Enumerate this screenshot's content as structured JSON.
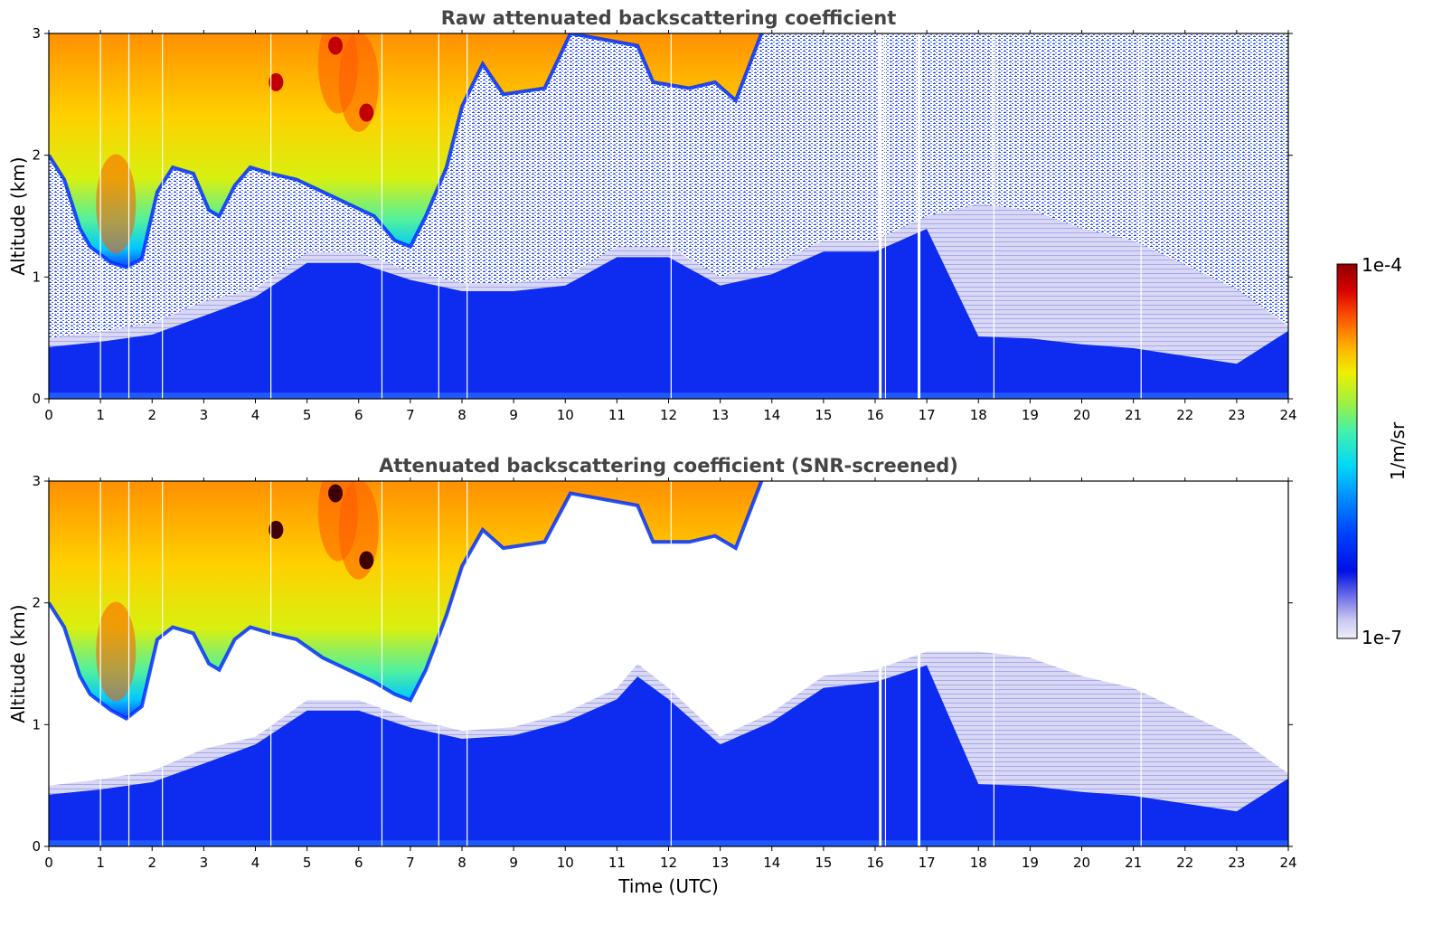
{
  "chart_data": [
    {
      "type": "heatmap",
      "title": "Raw attenuated backscattering coefficient",
      "xlabel": "",
      "ylabel": "Altitude (km)",
      "xlim": [
        0,
        24
      ],
      "ylim": [
        0,
        3
      ],
      "x_ticks": [
        "0",
        "1",
        "2",
        "3",
        "4",
        "5",
        "6",
        "7",
        "8",
        "9",
        "10",
        "11",
        "12",
        "13",
        "14",
        "15",
        "16",
        "17",
        "18",
        "19",
        "20",
        "21",
        "22",
        "23",
        "24"
      ],
      "y_ticks": [
        "0",
        "1",
        "2",
        "3"
      ],
      "screened": false,
      "cloud_top_km": 3,
      "cloud_base_km": [
        [
          0.0,
          2.0
        ],
        [
          0.3,
          1.8
        ],
        [
          0.6,
          1.4
        ],
        [
          0.8,
          1.25
        ],
        [
          1.2,
          1.12
        ],
        [
          1.5,
          1.08
        ],
        [
          1.8,
          1.15
        ],
        [
          2.1,
          1.7
        ],
        [
          2.4,
          1.9
        ],
        [
          2.8,
          1.85
        ],
        [
          3.1,
          1.55
        ],
        [
          3.3,
          1.5
        ],
        [
          3.6,
          1.75
        ],
        [
          3.9,
          1.9
        ],
        [
          4.3,
          1.85
        ],
        [
          4.8,
          1.8
        ],
        [
          5.3,
          1.7
        ],
        [
          5.8,
          1.6
        ],
        [
          6.3,
          1.5
        ],
        [
          6.7,
          1.3
        ],
        [
          7.0,
          1.25
        ],
        [
          7.3,
          1.5
        ],
        [
          7.7,
          1.9
        ],
        [
          8.0,
          2.4
        ],
        [
          8.4,
          2.75
        ],
        [
          8.8,
          2.5
        ],
        [
          9.6,
          2.55
        ],
        [
          10.1,
          3.0
        ],
        [
          11.4,
          2.9
        ],
        [
          11.7,
          2.6
        ],
        [
          12.4,
          2.55
        ],
        [
          12.9,
          2.6
        ],
        [
          13.3,
          2.45
        ],
        [
          13.8,
          3.0
        ]
      ],
      "aerosol_top_km": [
        [
          0.0,
          0.5
        ],
        [
          1.0,
          0.55
        ],
        [
          2.0,
          0.62
        ],
        [
          3.0,
          0.8
        ],
        [
          4.0,
          0.9
        ],
        [
          5.0,
          1.2
        ],
        [
          6.0,
          1.2
        ],
        [
          7.0,
          1.05
        ],
        [
          8.0,
          0.95
        ],
        [
          9.0,
          0.95
        ],
        [
          10.0,
          1.0
        ],
        [
          11.0,
          1.25
        ],
        [
          12.0,
          1.25
        ],
        [
          13.0,
          1.0
        ],
        [
          14.0,
          1.1
        ],
        [
          15.0,
          1.3
        ],
        [
          16.0,
          1.3
        ],
        [
          17.0,
          1.5
        ],
        [
          18.0,
          1.6
        ],
        [
          19.0,
          1.55
        ],
        [
          20.0,
          1.4
        ],
        [
          21.0,
          1.3
        ],
        [
          22.0,
          1.1
        ],
        [
          23.0,
          0.9
        ],
        [
          24.0,
          0.6
        ]
      ]
    },
    {
      "type": "heatmap",
      "title": "Attenuated backscattering coefficient (SNR-screened)",
      "xlabel": "Time (UTC)",
      "ylabel": "Altitude (km)",
      "xlim": [
        0,
        24
      ],
      "ylim": [
        0,
        3
      ],
      "x_ticks": [
        "0",
        "1",
        "2",
        "3",
        "4",
        "5",
        "6",
        "7",
        "8",
        "9",
        "10",
        "11",
        "12",
        "13",
        "14",
        "15",
        "16",
        "17",
        "18",
        "19",
        "20",
        "21",
        "22",
        "23",
        "24"
      ],
      "y_ticks": [
        "0",
        "1",
        "2",
        "3"
      ],
      "screened": true,
      "cloud_top_km": 3,
      "cloud_base_km": [
        [
          0.0,
          2.0
        ],
        [
          0.3,
          1.8
        ],
        [
          0.6,
          1.4
        ],
        [
          0.8,
          1.25
        ],
        [
          1.2,
          1.12
        ],
        [
          1.5,
          1.05
        ],
        [
          1.8,
          1.15
        ],
        [
          2.1,
          1.7
        ],
        [
          2.4,
          1.8
        ],
        [
          2.8,
          1.75
        ],
        [
          3.1,
          1.5
        ],
        [
          3.3,
          1.45
        ],
        [
          3.6,
          1.7
        ],
        [
          3.9,
          1.8
        ],
        [
          4.3,
          1.75
        ],
        [
          4.8,
          1.7
        ],
        [
          5.3,
          1.55
        ],
        [
          5.8,
          1.45
        ],
        [
          6.3,
          1.35
        ],
        [
          6.7,
          1.25
        ],
        [
          7.0,
          1.2
        ],
        [
          7.3,
          1.45
        ],
        [
          7.7,
          1.9
        ],
        [
          8.0,
          2.3
        ],
        [
          8.4,
          2.6
        ],
        [
          8.8,
          2.45
        ],
        [
          9.6,
          2.5
        ],
        [
          10.1,
          2.9
        ],
        [
          11.4,
          2.8
        ],
        [
          11.7,
          2.5
        ],
        [
          12.4,
          2.5
        ],
        [
          12.9,
          2.55
        ],
        [
          13.3,
          2.45
        ],
        [
          13.8,
          3.0
        ]
      ],
      "aerosol_top_km": [
        [
          0.0,
          0.5
        ],
        [
          1.0,
          0.55
        ],
        [
          2.0,
          0.62
        ],
        [
          3.0,
          0.8
        ],
        [
          4.0,
          0.9
        ],
        [
          5.0,
          1.2
        ],
        [
          6.0,
          1.2
        ],
        [
          7.0,
          1.05
        ],
        [
          8.0,
          0.95
        ],
        [
          9.0,
          0.98
        ],
        [
          10.0,
          1.1
        ],
        [
          11.0,
          1.3
        ],
        [
          11.4,
          1.5
        ],
        [
          12.0,
          1.3
        ],
        [
          13.0,
          0.9
        ],
        [
          14.0,
          1.1
        ],
        [
          15.0,
          1.4
        ],
        [
          16.0,
          1.45
        ],
        [
          17.0,
          1.6
        ],
        [
          18.0,
          1.6
        ],
        [
          19.0,
          1.55
        ],
        [
          20.0,
          1.4
        ],
        [
          21.0,
          1.3
        ],
        [
          22.0,
          1.1
        ],
        [
          23.0,
          0.9
        ],
        [
          24.0,
          0.6
        ]
      ]
    }
  ],
  "colorbar": {
    "max_label": "1e-4",
    "min_label": "1e-7",
    "unit": "1/m/sr",
    "colors": [
      "#e8e8f8",
      "#c8c8f0",
      "#9898e8",
      "#2040f0",
      "#0018e0",
      "#0050ff",
      "#00a0ff",
      "#00e0f0",
      "#40f0a0",
      "#a0f040",
      "#e8f000",
      "#ffc000",
      "#ff6000",
      "#e81000",
      "#a00000"
    ]
  }
}
